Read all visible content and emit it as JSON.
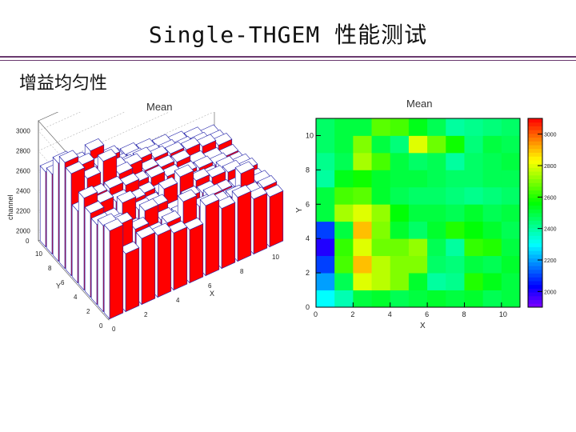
{
  "slide": {
    "title": "Single-THGEM 性能测试",
    "subtitle": "增益均匀性"
  },
  "chart_data": [
    {
      "type": "bar3d",
      "title": "Mean",
      "zlabel": "channel",
      "xlabel": "X",
      "ylabel": "Y",
      "z_ticks": [
        "2000",
        "2200",
        "2400",
        "2600",
        "2800",
        "3000"
      ],
      "x_ticks": [
        "0",
        "2",
        "4",
        "6",
        "8",
        "10"
      ],
      "y_ticks": [
        "0",
        "2",
        "4",
        "6",
        "8",
        "10"
      ],
      "zlim": [
        1900,
        3100
      ],
      "rows": [
        [
          2780,
          2480,
          2560,
          2520,
          2470,
          2430,
          2600,
          2500,
          2540,
          2450,
          2400
        ],
        [
          2760,
          2700,
          2580,
          2460,
          2500,
          2640,
          2520,
          2480,
          2470,
          2430,
          2420
        ],
        [
          2700,
          2620,
          2500,
          2620,
          2460,
          2440,
          2400,
          2480,
          2380,
          2560,
          2400
        ],
        [
          2740,
          2600,
          2700,
          2560,
          2520,
          2400,
          2460,
          2440,
          2380,
          2360,
          2350
        ],
        [
          2820,
          2700,
          2640,
          2580,
          2470,
          2550,
          2600,
          2490,
          2450,
          2430,
          2380
        ],
        [
          2620,
          2700,
          2700,
          2660,
          2500,
          2440,
          2420,
          2400,
          2380,
          2400,
          2350
        ],
        [
          2920,
          2800,
          2900,
          2700,
          2540,
          2520,
          2460,
          2420,
          2400,
          2360,
          2300
        ],
        [
          2960,
          2860,
          2780,
          2680,
          2640,
          2520,
          2480,
          2460,
          2380,
          2340,
          2300
        ],
        [
          2880,
          2800,
          2860,
          2720,
          2560,
          2560,
          2500,
          2470,
          2440,
          2400,
          2340
        ],
        [
          2700,
          2660,
          2600,
          2560,
          2500,
          2480,
          2450,
          2420,
          2380,
          2350,
          2300
        ],
        [
          2650,
          2620,
          2580,
          2520,
          2480,
          2460,
          2430,
          2400,
          2360,
          2330,
          2280
        ]
      ]
    },
    {
      "type": "heatmap",
      "title": "Mean",
      "xlabel": "X",
      "ylabel": "Y",
      "x_ticks": [
        "0",
        "2",
        "4",
        "6",
        "8",
        "10"
      ],
      "y_ticks": [
        "0",
        "2",
        "4",
        "6",
        "8",
        "10"
      ],
      "colorbar_ticks": [
        "2000",
        "2200",
        "2400",
        "2600",
        "2800",
        "3000"
      ],
      "zlim": [
        1900,
        3100
      ],
      "rows": [
        [
          2300,
          2380,
          2500,
          2520,
          2480,
          2500,
          2520,
          2500,
          2520,
          2480,
          2500
        ],
        [
          2200,
          2480,
          2800,
          2760,
          2700,
          2520,
          2400,
          2420,
          2600,
          2540,
          2500
        ],
        [
          2100,
          2640,
          2900,
          2760,
          2700,
          2700,
          2460,
          2440,
          2500,
          2480,
          2520
        ],
        [
          2000,
          2620,
          2800,
          2680,
          2680,
          2720,
          2480,
          2400,
          2620,
          2600,
          2500
        ],
        [
          2100,
          2500,
          2900,
          2700,
          2520,
          2460,
          2520,
          2600,
          2560,
          2520,
          2480
        ],
        [
          2500,
          2740,
          2800,
          2720,
          2560,
          2500,
          2500,
          2480,
          2520,
          2480,
          2500
        ],
        [
          2500,
          2640,
          2660,
          2520,
          2480,
          2460,
          2460,
          2440,
          2420,
          2440,
          2460
        ],
        [
          2400,
          2540,
          2580,
          2520,
          2500,
          2500,
          2480,
          2460,
          2460,
          2480,
          2480
        ],
        [
          2420,
          2480,
          2740,
          2640,
          2500,
          2460,
          2480,
          2400,
          2460,
          2480,
          2500
        ],
        [
          2460,
          2500,
          2700,
          2500,
          2440,
          2800,
          2680,
          2580,
          2440,
          2500,
          2480
        ],
        [
          2460,
          2500,
          2500,
          2660,
          2640,
          2540,
          2480,
          2400,
          2420,
          2440,
          2460
        ]
      ]
    }
  ],
  "colors": {
    "bar_face": "#ff0000",
    "bar_edge": "#2222aa",
    "title_rule": "#6a3a6f"
  }
}
